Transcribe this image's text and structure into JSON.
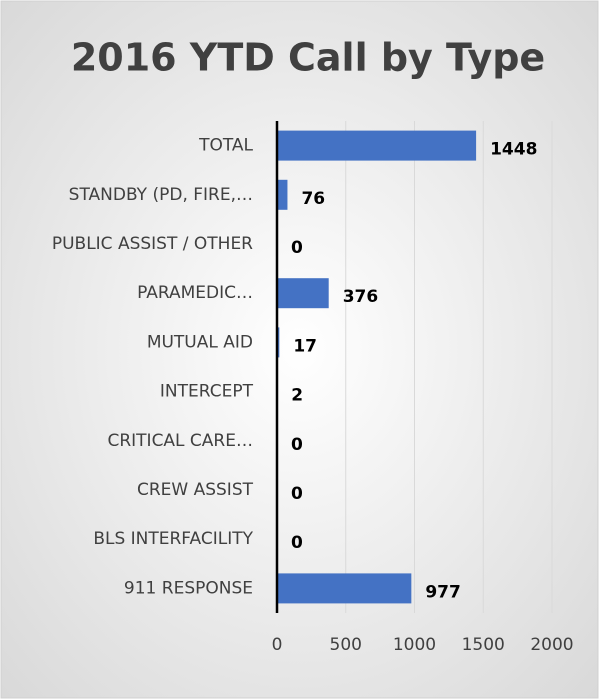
{
  "chart_data": {
    "type": "hbar",
    "title": "2016 YTD Call by Type",
    "categories": [
      "TOTAL",
      "STANDBY (PD, FIRE,…",
      "PUBLIC ASSIST / OTHER",
      "PARAMEDIC…",
      "MUTUAL AID",
      "INTERCEPT",
      "CRITICAL CARE…",
      "CREW ASSIST",
      "BLS INTERFACILITY",
      "911 RESPONSE"
    ],
    "values": [
      1448,
      76,
      0,
      376,
      17,
      2,
      0,
      0,
      0,
      977
    ],
    "color": "#4472c4",
    "xlim": [
      0,
      2000
    ],
    "xticks": [
      0,
      500,
      1000,
      1500,
      2000
    ],
    "grid": true
  }
}
